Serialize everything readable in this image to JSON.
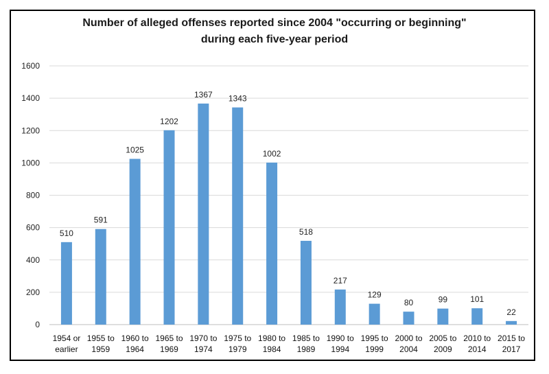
{
  "chart_data": {
    "type": "bar",
    "title_line1": "Number of alleged offenses reported since 2004 \"occurring or beginning\"",
    "title_line2": "during each five-year period",
    "categories": [
      [
        "1954 or",
        "earlier"
      ],
      [
        "1955 to",
        "1959"
      ],
      [
        "1960 to",
        "1964"
      ],
      [
        "1965 to",
        "1969"
      ],
      [
        "1970 to",
        "1974"
      ],
      [
        "1975 to",
        "1979"
      ],
      [
        "1980 to",
        "1984"
      ],
      [
        "1985 to",
        "1989"
      ],
      [
        "1990 to",
        "1994"
      ],
      [
        "1995 to",
        "1999"
      ],
      [
        "2000 to",
        "2004"
      ],
      [
        "2005 to",
        "2009"
      ],
      [
        "2010 to",
        "2014"
      ],
      [
        "2015 to",
        "2017"
      ]
    ],
    "values": [
      510,
      591,
      1025,
      1202,
      1367,
      1343,
      1002,
      518,
      217,
      129,
      80,
      99,
      101,
      22
    ],
    "ylim": [
      0,
      1600
    ],
    "yticks": [
      0,
      200,
      400,
      600,
      800,
      1000,
      1200,
      1400,
      1600
    ],
    "grid": true,
    "bar_color": "#5b9bd5",
    "grid_color": "#d9d9d9"
  }
}
